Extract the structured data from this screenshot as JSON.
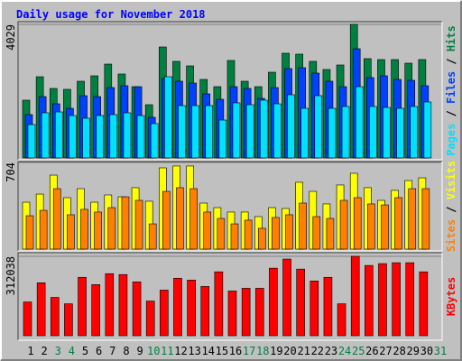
{
  "title": "Daily usage for November 2018",
  "legend_separator": " / ",
  "chart_data": [
    {
      "type": "bar",
      "categories": [
        "1",
        "2",
        "3",
        "4",
        "5",
        "6",
        "7",
        "8",
        "9",
        "10",
        "11",
        "12",
        "13",
        "14",
        "15",
        "16",
        "17",
        "18",
        "19",
        "20",
        "21",
        "22",
        "23",
        "24",
        "25",
        "26",
        "27",
        "28",
        "29",
        "30",
        "31"
      ],
      "ylim": [
        0,
        4029
      ],
      "yticks": [
        4029
      ],
      "series": [
        {
          "name": "Hits",
          "color": "#008040",
          "values": [
            1742,
            2450,
            2096,
            2069,
            2314,
            2477,
            2831,
            2532,
            2150,
            1606,
            3348,
            2913,
            2777,
            2368,
            2150,
            2940,
            2314,
            2150,
            2586,
            3158,
            3131,
            2913,
            2668,
            2804,
            4029,
            2995,
            2967,
            2967,
            2858,
            2967,
            null
          ]
        },
        {
          "name": "Files",
          "color": "#0040ff",
          "values": [
            1307,
            1851,
            1633,
            1497,
            1878,
            1851,
            2123,
            2178,
            2150,
            1225,
            2396,
            2314,
            2259,
            1933,
            1769,
            2150,
            2096,
            1797,
            2123,
            2695,
            2722,
            2559,
            2314,
            2150,
            3294,
            2423,
            2477,
            2368,
            2341,
            2178,
            null
          ]
        },
        {
          "name": "Pages",
          "color": "#00e0ff",
          "values": [
            1007,
            1361,
            1388,
            1279,
            1198,
            1279,
            1307,
            1361,
            1279,
            1035,
            2450,
            1579,
            1579,
            1579,
            1143,
            1661,
            1606,
            1742,
            1633,
            1906,
            1497,
            1878,
            1497,
            1552,
            2150,
            1552,
            1524,
            1497,
            1552,
            1688,
            null
          ]
        }
      ]
    },
    {
      "type": "bar",
      "categories": [
        "1",
        "2",
        "3",
        "4",
        "5",
        "6",
        "7",
        "8",
        "9",
        "10",
        "11",
        "12",
        "13",
        "14",
        "15",
        "16",
        "17",
        "18",
        "19",
        "20",
        "21",
        "22",
        "23",
        "24",
        "25",
        "26",
        "27",
        "28",
        "29",
        "30",
        "31"
      ],
      "ylim": [
        0,
        704
      ],
      "yticks": [
        704
      ],
      "series": [
        {
          "name": "Visits",
          "color": "#ffff00",
          "values": [
            381,
            447,
            601,
            418,
            491,
            381,
            440,
            425,
            499,
            389,
            660,
            675,
            675,
            374,
            337,
            301,
            301,
            264,
            337,
            330,
            543,
            469,
            367,
            521,
            616,
            499,
            396,
            477,
            557,
            579,
            null
          ]
        },
        {
          "name": "Sites",
          "color": "#ff8000",
          "values": [
            271,
            315,
            491,
            279,
            323,
            301,
            337,
            425,
            396,
            205,
            469,
            499,
            491,
            301,
            249,
            205,
            235,
            169,
            257,
            279,
            374,
            264,
            249,
            396,
            418,
            367,
            359,
            418,
            491,
            491,
            null
          ]
        }
      ]
    },
    {
      "type": "bar",
      "categories": [
        "1",
        "2",
        "3",
        "4",
        "5",
        "6",
        "7",
        "8",
        "9",
        "10",
        "11",
        "12",
        "13",
        "14",
        "15",
        "16",
        "17",
        "18",
        "19",
        "20",
        "21",
        "22",
        "23",
        "24",
        "25",
        "26",
        "27",
        "28",
        "29",
        "30",
        "31"
      ],
      "category_colors": [
        "#000000",
        "#000000",
        "#008040",
        "#008040",
        "#000000",
        "#000000",
        "#000000",
        "#000000",
        "#000000",
        "#008040",
        "#008040",
        "#000000",
        "#000000",
        "#000000",
        "#000000",
        "#000000",
        "#008040",
        "#008040",
        "#000000",
        "#000000",
        "#000000",
        "#000000",
        "#000000",
        "#008040",
        "#008040",
        "#000000",
        "#000000",
        "#000000",
        "#000000",
        "#000000",
        "#008040"
      ],
      "ylim": [
        0,
        312038
      ],
      "yticks": [
        312038
      ],
      "series": [
        {
          "name": "KBytes",
          "color": "#ff0000",
          "values": [
            132706,
            208025,
            150639,
            125533,
            229545,
            200852,
            243891,
            240304,
            211612,
            136293,
            179332,
            225959,
            218785,
            193679,
            251064,
            175746,
            186505,
            186505,
            265411,
            301279,
            261825,
            215198,
            229545,
            125533,
            312038,
            276171,
            283345,
            286931,
            286931,
            251064,
            null
          ]
        }
      ]
    }
  ]
}
